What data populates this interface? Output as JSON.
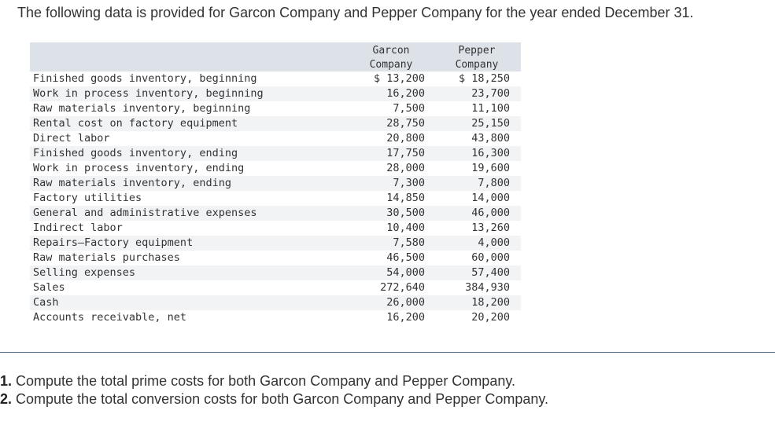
{
  "intro": "The following data is provided for Garcon Company and Pepper Company for the year ended December 31.",
  "table": {
    "headers": {
      "garcon_line1": "Garcon",
      "garcon_line2": "Company",
      "pepper_line1": "Pepper",
      "pepper_line2": "Company"
    },
    "rows": [
      {
        "label": "Finished goods inventory, beginning",
        "garcon": "$ 13,200",
        "pepper": "$ 18,250"
      },
      {
        "label": "Work in process inventory, beginning",
        "garcon": "16,200",
        "pepper": "23,700"
      },
      {
        "label": "Raw materials inventory, beginning",
        "garcon": "7,500",
        "pepper": "11,100"
      },
      {
        "label": "Rental cost on factory equipment",
        "garcon": "28,750",
        "pepper": "25,150"
      },
      {
        "label": "Direct labor",
        "garcon": "20,800",
        "pepper": "43,800"
      },
      {
        "label": "Finished goods inventory, ending",
        "garcon": "17,750",
        "pepper": "16,300"
      },
      {
        "label": "Work in process inventory, ending",
        "garcon": "28,000",
        "pepper": "19,600"
      },
      {
        "label": "Raw materials inventory, ending",
        "garcon": "7,300",
        "pepper": "7,800"
      },
      {
        "label": "Factory utilities",
        "garcon": "14,850",
        "pepper": "14,000"
      },
      {
        "label": "General and administrative expenses",
        "garcon": "30,500",
        "pepper": "46,000"
      },
      {
        "label": "Indirect labor",
        "garcon": "10,400",
        "pepper": "13,260"
      },
      {
        "label": "Repairs—Factory equipment",
        "garcon": "7,580",
        "pepper": "4,000"
      },
      {
        "label": "Raw materials purchases",
        "garcon": "46,500",
        "pepper": "60,000"
      },
      {
        "label": "Selling expenses",
        "garcon": "54,000",
        "pepper": "57,400"
      },
      {
        "label": "Sales",
        "garcon": "272,640",
        "pepper": "384,930"
      },
      {
        "label": "Cash",
        "garcon": "26,000",
        "pepper": "18,200"
      },
      {
        "label": "Accounts receivable, net",
        "garcon": "16,200",
        "pepper": "20,200"
      }
    ]
  },
  "questions": [
    {
      "number": "1.",
      "text": " Compute the total prime costs for both Garcon Company and Pepper Company."
    },
    {
      "number": "2.",
      "text": " Compute the total conversion costs for both Garcon Company and Pepper Company."
    }
  ]
}
